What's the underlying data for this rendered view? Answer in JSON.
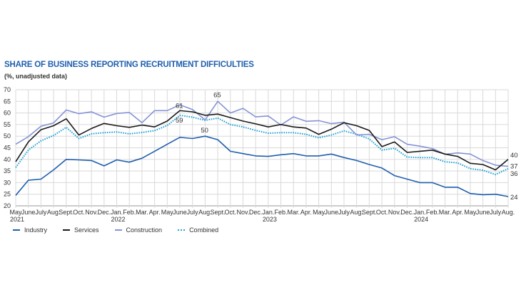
{
  "chart_data": {
    "type": "line",
    "title": "SHARE OF BUSINESS REPORTING RECRUITMENT DIFFICULTIES",
    "subtitle": "(%, unadjusted data)",
    "xlabel": "",
    "ylabel": "",
    "ylim": [
      20,
      70
    ],
    "yticks": [
      20,
      25,
      30,
      35,
      40,
      45,
      50,
      55,
      60,
      65,
      70
    ],
    "grid": true,
    "legend_position": "bottom-left",
    "x": [
      "May",
      "June",
      "July",
      "Aug.",
      "Sept.",
      "Oct.",
      "Nov.",
      "Dec.",
      "Jan.",
      "Feb.",
      "Mar.",
      "Apr.",
      "May",
      "June",
      "July",
      "Aug.",
      "Sept.",
      "Oct.",
      "Nov.",
      "Dec.",
      "Jan.",
      "Feb.",
      "Mar.",
      "Apr.",
      "May",
      "June",
      "July",
      "Aug.",
      "Sept.",
      "Oct.",
      "Nov.",
      "Dec.",
      "Jan.",
      "Feb.",
      "Mar.",
      "Apr.",
      "May",
      "June",
      "July",
      "Aug."
    ],
    "year_labels": [
      {
        "index": 0,
        "label": "2021"
      },
      {
        "index": 8,
        "label": "2022"
      },
      {
        "index": 20,
        "label": "2023"
      },
      {
        "index": 32,
        "label": "2024"
      }
    ],
    "series": [
      {
        "name": "Industry",
        "color": "#1f5fae",
        "style": "solid",
        "values": [
          24.5,
          31,
          31.5,
          35.5,
          40,
          39.8,
          39.5,
          37.2,
          39.8,
          38.8,
          40.5,
          43.5,
          46.5,
          49.5,
          49,
          50,
          48.5,
          43.5,
          42.5,
          41.5,
          41.3,
          42,
          42.5,
          41.5,
          41.5,
          42.3,
          40.8,
          39.5,
          37.8,
          36.3,
          33,
          31.5,
          30,
          30,
          28,
          28,
          25.3,
          24.8,
          25,
          24
        ]
      },
      {
        "name": "Services",
        "color": "#1a1a1a",
        "style": "solid",
        "values": [
          39,
          47.5,
          52.8,
          54.5,
          57.5,
          50.5,
          53.3,
          55.5,
          54.5,
          53.8,
          54.8,
          54,
          56.5,
          61,
          60.5,
          59,
          59.5,
          58,
          56.5,
          55.3,
          54,
          55,
          54,
          53.5,
          50.8,
          53,
          55.8,
          54.5,
          52.5,
          45.5,
          47.5,
          43,
          43.5,
          44,
          42.3,
          41.3,
          38.3,
          37.8,
          35.5,
          40
        ]
      },
      {
        "name": "Construction",
        "color": "#8593d6",
        "style": "solid",
        "values": [
          46.5,
          49.8,
          54.3,
          55.7,
          61.3,
          59.7,
          60.5,
          58.2,
          59.8,
          60.2,
          55.8,
          61,
          61,
          63.5,
          61.5,
          57,
          65,
          60,
          62,
          58.3,
          58.7,
          54.8,
          58.3,
          56.4,
          56.7,
          55.4,
          56,
          50.5,
          50.8,
          48.5,
          49.8,
          46.5,
          45.7,
          44.7,
          42.2,
          42.8,
          42.3,
          39.5,
          37.5,
          37
        ]
      },
      {
        "name": "Combined",
        "color": "#22a3d6",
        "style": "dotted",
        "values": [
          36.5,
          44,
          48,
          50.3,
          53.8,
          49,
          51,
          51.5,
          51.8,
          51,
          51.6,
          52.4,
          54.6,
          59,
          58.2,
          56.8,
          57.8,
          55,
          54,
          52.5,
          51.3,
          51.5,
          51.5,
          50.8,
          49.3,
          50.5,
          52.3,
          50.8,
          48.8,
          44,
          44.8,
          41,
          40.8,
          40.8,
          39,
          38.5,
          36,
          35.3,
          33.5,
          36
        ]
      }
    ],
    "annotations": [
      {
        "series": "Services",
        "index": 13,
        "text": "61"
      },
      {
        "series": "Combined",
        "index": 13,
        "text": "59"
      },
      {
        "series": "Industry",
        "index": 15,
        "text": "50"
      },
      {
        "series": "Construction",
        "index": 16,
        "text": "65"
      },
      {
        "series": "Services",
        "index": 39,
        "text": "40"
      },
      {
        "series": "Construction",
        "index": 39,
        "text": "37"
      },
      {
        "series": "Combined",
        "index": 39,
        "text": "36"
      },
      {
        "series": "Industry",
        "index": 39,
        "text": "24"
      }
    ]
  }
}
